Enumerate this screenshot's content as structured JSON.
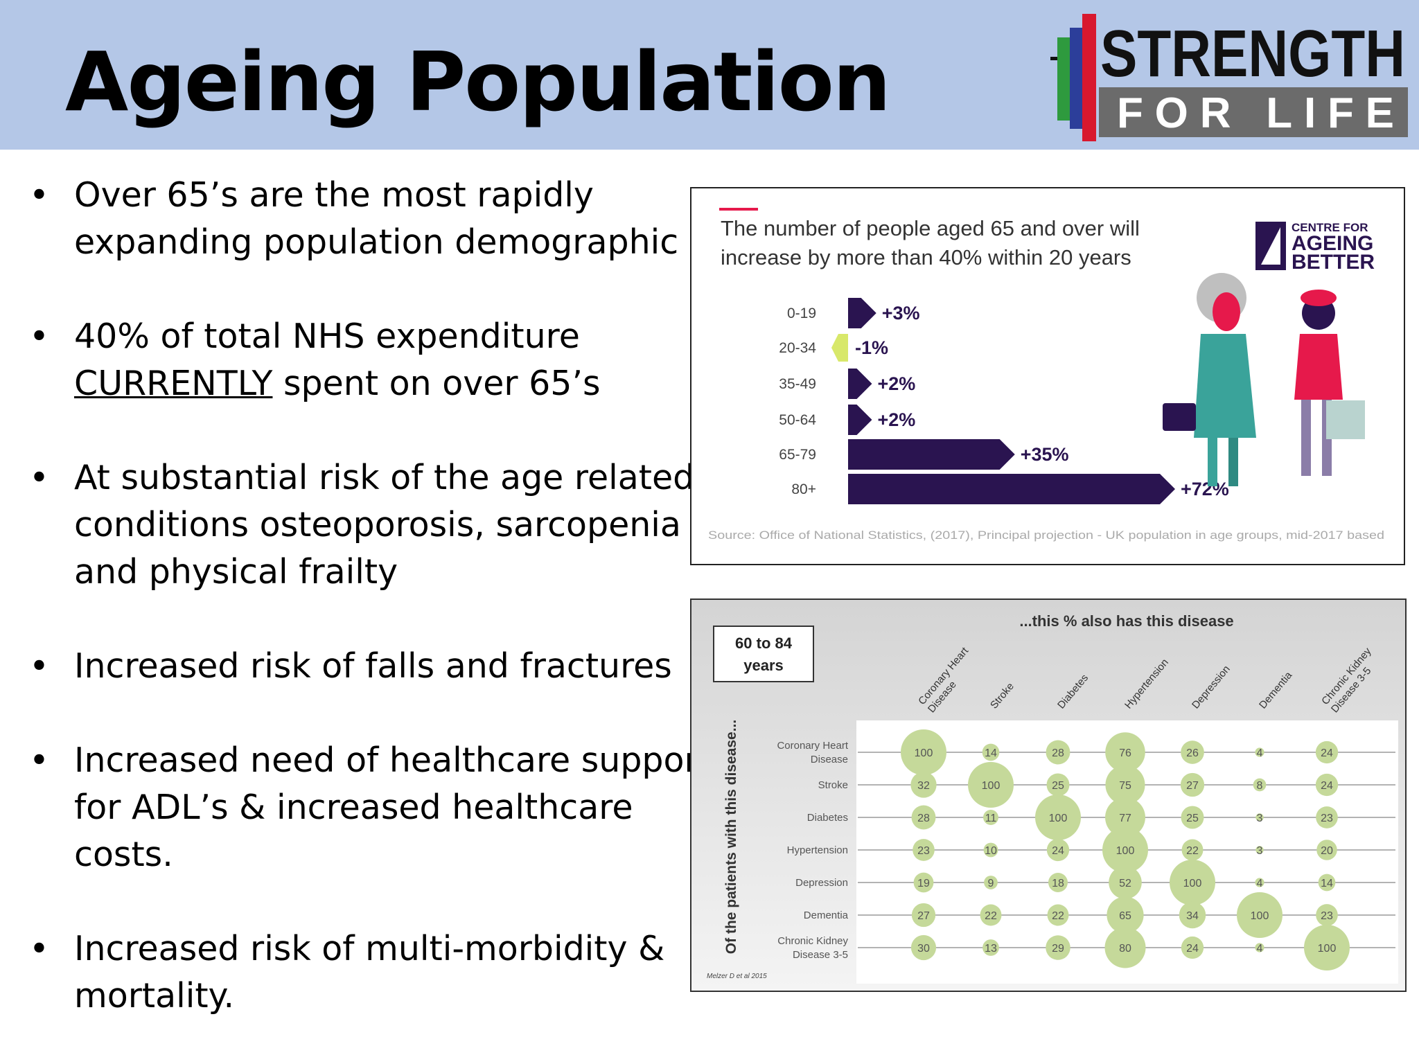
{
  "header": {
    "title": "Ageing Population",
    "logo_line1": "STRENGTH",
    "logo_line2": "FOR LIFE"
  },
  "bullets": [
    {
      "lines": [
        "Over 65’s are the most rapidly",
        "expanding population demographic"
      ]
    },
    {
      "lines": [
        "40% of total NHS expenditure",
        "CURRENTLY spent on over 65’s"
      ],
      "underlined": "CURRENTLY"
    },
    {
      "lines": [
        "At substantial risk of the age related",
        "conditions osteoporosis, sarcopenia",
        "and physical frailty"
      ]
    },
    {
      "lines": [
        "Increased risk of falls and fractures"
      ]
    },
    {
      "lines": [
        "Increased need of healthcare support",
        "for ADL’s & increased healthcare",
        "costs."
      ]
    },
    {
      "lines": [
        "Increased risk of multi-morbidity &",
        "mortality."
      ]
    }
  ],
  "bullet_symbol": "•",
  "chart_data": [
    {
      "type": "bar",
      "title": "The number of people aged 65 and over will increase by more than 40% within 20 years",
      "title_lines": [
        "The number of people aged 65 and over will",
        "increase by more than 40% within 20 years"
      ],
      "brand_lines": [
        "CENTRE FOR",
        "AGEING",
        "BETTER"
      ],
      "categories": [
        "0-19",
        "20-34",
        "35-49",
        "50-64",
        "65-79",
        "80+"
      ],
      "values": [
        3,
        -1,
        2,
        2,
        35,
        72
      ],
      "labels": [
        "+3%",
        "-1%",
        "+2%",
        "+2%",
        "+35%",
        "+72%"
      ],
      "source": "Source: Office of National Statistics, (2017), Principal projection - UK population in age groups, mid-2017 based",
      "colors": {
        "positive": "#2a1450",
        "negative": "#d8e86a",
        "accent": "#e6194b"
      }
    },
    {
      "type": "table",
      "box_lines": [
        "60 to 84",
        "years"
      ],
      "column_heading": "...this % also has this disease",
      "row_heading": "Of the patients with this disease...",
      "columns": [
        "Coronary Heart Disease",
        "Stroke",
        "Diabetes",
        "Hypertension",
        "Depression",
        "Dementia",
        "Chronic Kidney Disease 3-5"
      ],
      "column_lines": [
        [
          "Coronary Heart",
          "Disease"
        ],
        [
          "Stroke"
        ],
        [
          "Diabetes"
        ],
        [
          "Hypertension"
        ],
        [
          "Depression"
        ],
        [
          "Dementia"
        ],
        [
          "Chronic Kidney",
          "Disease 3-5"
        ]
      ],
      "rows": [
        "Coronary Heart Disease",
        "Stroke",
        "Diabetes",
        "Hypertension",
        "Depression",
        "Dementia",
        "Chronic Kidney Disease 3-5"
      ],
      "row_lines": [
        [
          "Coronary Heart",
          "Disease"
        ],
        [
          "Stroke"
        ],
        [
          "Diabetes"
        ],
        [
          "Hypertension"
        ],
        [
          "Depression"
        ],
        [
          "Dementia"
        ],
        [
          "Chronic Kidney",
          "Disease 3-5"
        ]
      ],
      "values": [
        [
          100,
          14,
          28,
          76,
          26,
          4,
          24
        ],
        [
          32,
          100,
          25,
          75,
          27,
          8,
          24
        ],
        [
          28,
          11,
          100,
          77,
          25,
          3,
          23
        ],
        [
          23,
          10,
          24,
          100,
          22,
          3,
          20
        ],
        [
          19,
          9,
          18,
          52,
          100,
          4,
          14
        ],
        [
          27,
          22,
          22,
          65,
          34,
          100,
          23
        ],
        [
          30,
          13,
          29,
          80,
          24,
          4,
          100
        ]
      ],
      "citation": "Melzer D et al 2015",
      "colors": {
        "bubble": "#c5d99a",
        "bubble_text": "#555555"
      }
    }
  ]
}
